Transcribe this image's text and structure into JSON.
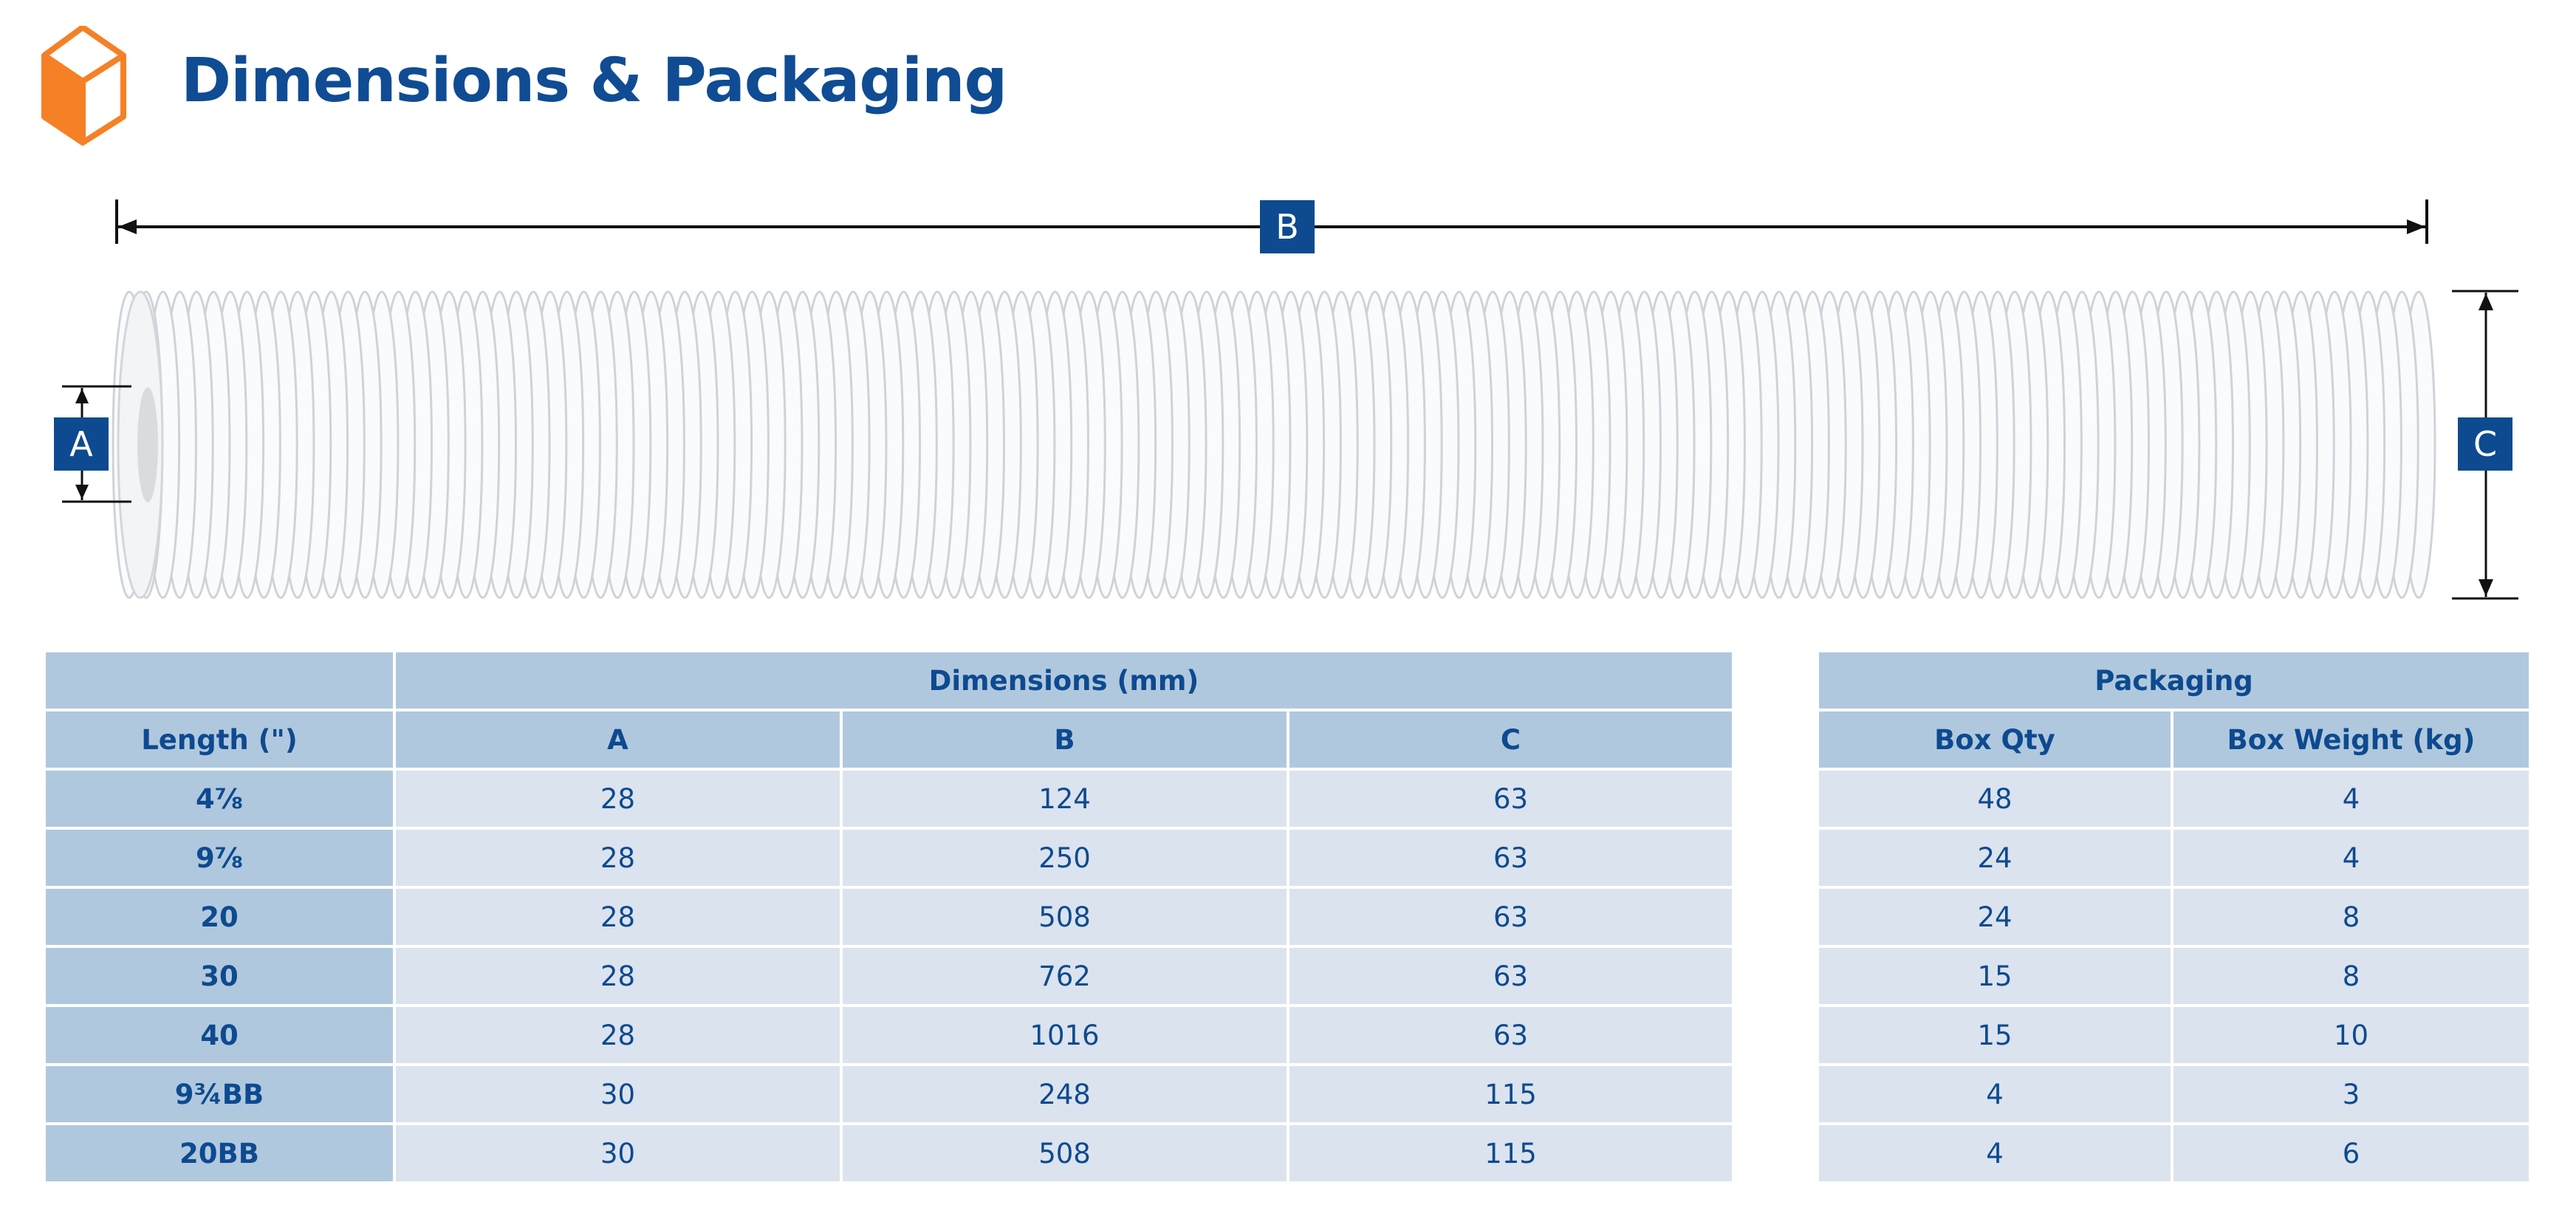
{
  "header": {
    "title": "Dimensions & Packaging",
    "icon": "box-icon",
    "icon_color": "#f58025"
  },
  "diagram": {
    "label_a": "A",
    "label_b": "B",
    "label_c": "C"
  },
  "dimensions_table": {
    "group_header": "Dimensions (mm)",
    "columns": [
      "Length (\")",
      "A",
      "B",
      "C"
    ],
    "rows": [
      [
        "4⅞",
        "28",
        "124",
        "63"
      ],
      [
        "9⅞",
        "28",
        "250",
        "63"
      ],
      [
        "20",
        "28",
        "508",
        "63"
      ],
      [
        "30",
        "28",
        "762",
        "63"
      ],
      [
        "40",
        "28",
        "1016",
        "63"
      ],
      [
        "9¾BB",
        "30",
        "248",
        "115"
      ],
      [
        "20BB",
        "30",
        "508",
        "115"
      ]
    ]
  },
  "packaging_table": {
    "group_header": "Packaging",
    "columns": [
      "Box Qty",
      "Box Weight (kg)"
    ],
    "rows": [
      [
        "48",
        "4"
      ],
      [
        "24",
        "4"
      ],
      [
        "24",
        "8"
      ],
      [
        "15",
        "8"
      ],
      [
        "15",
        "10"
      ],
      [
        "4",
        "3"
      ],
      [
        "4",
        "6"
      ]
    ]
  },
  "colors": {
    "brand_blue": "#0d4a8f",
    "header_bg": "#b0c8de",
    "cell_bg": "#dbe3ee",
    "orange": "#f58025"
  }
}
